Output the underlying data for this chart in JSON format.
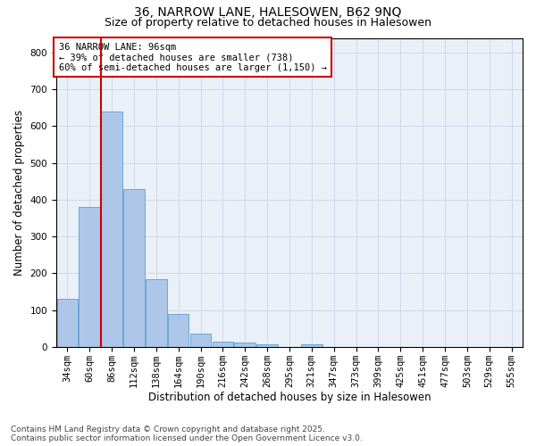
{
  "title1": "36, NARROW LANE, HALESOWEN, B62 9NQ",
  "title2": "Size of property relative to detached houses in Halesowen",
  "xlabel": "Distribution of detached houses by size in Halesowen",
  "ylabel": "Number of detached properties",
  "categories": [
    "34sqm",
    "60sqm",
    "86sqm",
    "112sqm",
    "138sqm",
    "164sqm",
    "190sqm",
    "216sqm",
    "242sqm",
    "268sqm",
    "295sqm",
    "321sqm",
    "347sqm",
    "373sqm",
    "399sqm",
    "425sqm",
    "451sqm",
    "477sqm",
    "503sqm",
    "529sqm",
    "555sqm"
  ],
  "values": [
    130,
    380,
    640,
    430,
    185,
    90,
    35,
    15,
    12,
    6,
    0,
    6,
    0,
    0,
    0,
    0,
    0,
    0,
    0,
    0,
    0
  ],
  "bar_color": "#aec6e8",
  "bar_edge_color": "#5a9fd4",
  "property_line_x": 1.5,
  "annotation_line1": "36 NARROW LANE: 96sqm",
  "annotation_line2": "← 39% of detached houses are smaller (738)",
  "annotation_line3": "60% of semi-detached houses are larger (1,150) →",
  "annotation_box_color": "#ffffff",
  "annotation_box_edge_color": "#cc0000",
  "vline_color": "#cc0000",
  "grid_color": "#d0d8e8",
  "background_color": "#eaf0f8",
  "ylim": [
    0,
    840
  ],
  "yticks": [
    0,
    100,
    200,
    300,
    400,
    500,
    600,
    700,
    800
  ],
  "footnote1": "Contains HM Land Registry data © Crown copyright and database right 2025.",
  "footnote2": "Contains public sector information licensed under the Open Government Licence v3.0.",
  "title1_fontsize": 10,
  "title2_fontsize": 9,
  "tick_fontsize": 7.5,
  "label_fontsize": 8.5,
  "annotation_fontsize": 7.5,
  "footnote_fontsize": 6.5
}
